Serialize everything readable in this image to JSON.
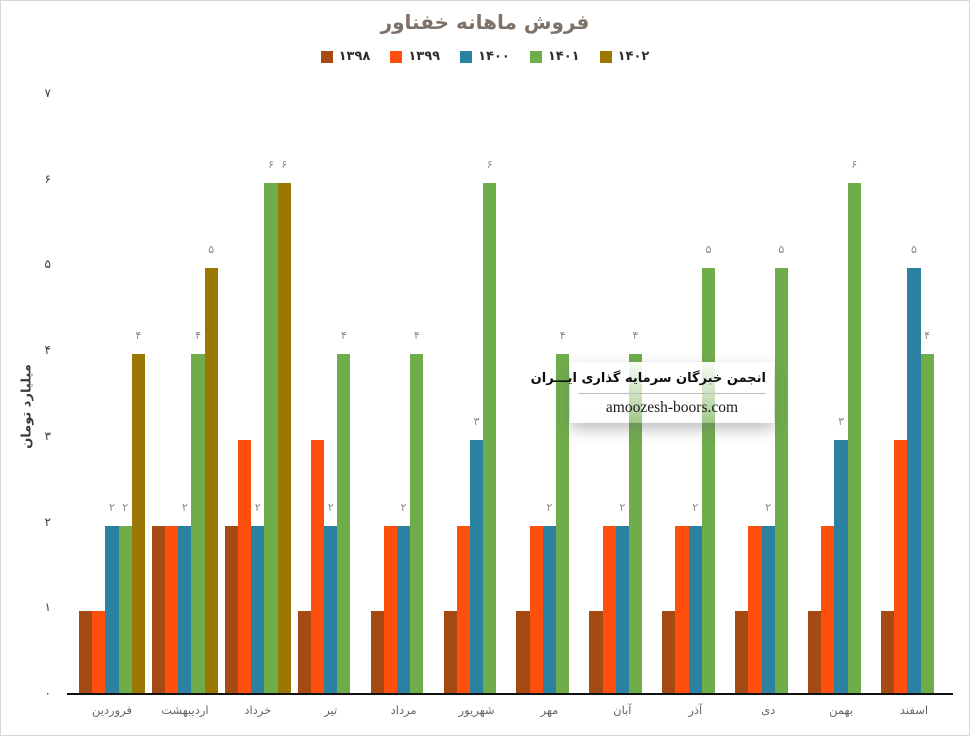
{
  "title": "فروش ماهانه خفناور",
  "y_axis": {
    "title": "میلیارد تومان",
    "ticks_top_to_bottom": [
      "۷",
      "۶",
      "۵",
      "۴",
      "۳",
      "۲",
      "۱",
      "۰"
    ],
    "max": 7
  },
  "watermark": {
    "line1": "انجمن خبرگان سرمایه گذاری ایـــران",
    "line2": "amoozesh-boors.com"
  },
  "chart_data": {
    "type": "bar",
    "title": "فروش ماهانه خفناور",
    "xlabel": "",
    "ylabel": "میلیارد تومان",
    "ylim": [
      0,
      7
    ],
    "grid": false,
    "legend_position": "top",
    "categories": [
      "فروردین",
      "اردیبهشت",
      "خرداد",
      "تیر",
      "مرداد",
      "شهریور",
      "مهر",
      "آبان",
      "آذر",
      "دی",
      "بهمن",
      "اسفند"
    ],
    "series": [
      {
        "name": "۱۳۹۸",
        "color": "#A44A12",
        "data_labels": false,
        "values": [
          1,
          2,
          2,
          1,
          1,
          1,
          1,
          1,
          1,
          1,
          1,
          1
        ]
      },
      {
        "name": "۱۳۹۹",
        "color": "#FF4F0D",
        "data_labels": false,
        "values": [
          1,
          2,
          3,
          3,
          2,
          2,
          2,
          2,
          2,
          2,
          2,
          3
        ]
      },
      {
        "name": "۱۴۰۰",
        "color": "#2A81A2",
        "data_labels": true,
        "values": [
          2,
          2,
          2,
          2,
          2,
          3,
          2,
          2,
          2,
          2,
          3,
          5
        ]
      },
      {
        "name": "۱۴۰۱",
        "color": "#6FAD4B",
        "data_labels": true,
        "values": [
          2,
          4,
          6,
          4,
          4,
          6,
          4,
          4,
          5,
          5,
          6,
          4
        ]
      },
      {
        "name": "۱۴۰۲",
        "color": "#9B7704",
        "data_labels": true,
        "values": [
          4,
          5,
          6,
          null,
          null,
          null,
          null,
          null,
          null,
          null,
          null,
          null
        ]
      }
    ]
  }
}
